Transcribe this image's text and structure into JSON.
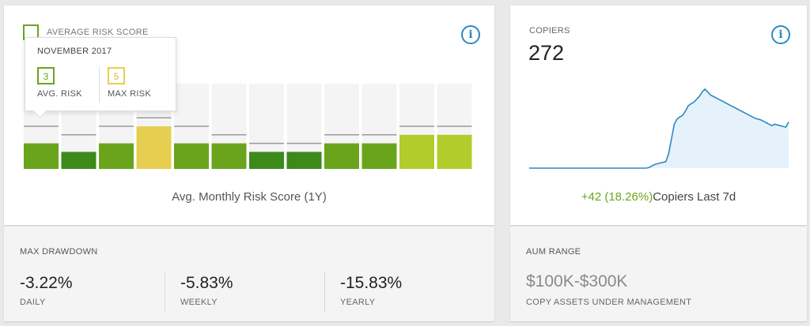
{
  "risk_card": {
    "legend_label": "AVERAGE RISK SCORE",
    "caption": "Avg. Monthly Risk Score (1Y)",
    "tooltip": {
      "title": "NOVEMBER 2017",
      "avg_value": "3",
      "avg_label": "AVG. RISK",
      "max_value": "5",
      "max_label": "MAX RISK"
    }
  },
  "chart_data": {
    "type": "bar",
    "title": "",
    "xlabel": "Avg. Monthly Risk Score (1Y)",
    "ylabel": "",
    "ylim": [
      0,
      10
    ],
    "grid": false,
    "series": [
      {
        "values": [
          3,
          2,
          3,
          5,
          3,
          3,
          2,
          2,
          3,
          3,
          4,
          4
        ]
      }
    ],
    "max_risk": [
      5,
      4,
      5,
      6,
      5,
      4,
      3,
      3,
      4,
      4,
      5,
      5
    ],
    "colors": [
      "#6aa41d",
      "#3c8a1a",
      "#6aa41d",
      "#e6cf50",
      "#6aa41d",
      "#6aa41d",
      "#3c8a1a",
      "#3c8a1a",
      "#6aa41d",
      "#6aa41d",
      "#b1cc2b",
      "#b1cc2b"
    ]
  },
  "copiers_card": {
    "label": "COPIERS",
    "value": "272",
    "delta": "+42 (18.26%)",
    "delta_text": "Copiers Last 7d",
    "spark": [
      0,
      0,
      0,
      0,
      0,
      0,
      0,
      0,
      0,
      0,
      0,
      0,
      0,
      0,
      0,
      0,
      0,
      0,
      0,
      0,
      0,
      0,
      0,
      0,
      0,
      0,
      0,
      0,
      0,
      0,
      0,
      0,
      0,
      0,
      0,
      0,
      0,
      0,
      0,
      0,
      0,
      0,
      0,
      1,
      3,
      5,
      6,
      7,
      8,
      9,
      20,
      40,
      60,
      67,
      70,
      72,
      78,
      85,
      88,
      90,
      94,
      98,
      104,
      108,
      104,
      100,
      98,
      96,
      94,
      92,
      90,
      88,
      86,
      84,
      82,
      80,
      78,
      76,
      74,
      72,
      70,
      68,
      67,
      66,
      64,
      62,
      60,
      58,
      60,
      59,
      58,
      57,
      56,
      63
    ],
    "spark_color": "#2a89c4",
    "spark_fill": "#e6f2fb"
  },
  "drawdown": {
    "heading": "MAX DRAWDOWN",
    "daily_value": "-3.22%",
    "daily_label": "DAILY",
    "weekly_value": "-5.83%",
    "weekly_label": "WEEKLY",
    "yearly_value": "-15.83%",
    "yearly_label": "YEARLY"
  },
  "aum": {
    "heading": "AUM RANGE",
    "value": "$100K-$300K",
    "label": "COPY ASSETS UNDER MANAGEMENT"
  },
  "icons": {
    "info": "i"
  },
  "theme": {
    "accent": "#2a89c4",
    "green": "#6aa41d",
    "dark_green": "#3c8a1a",
    "lime": "#b1cc2b",
    "yellow": "#e6cf50"
  }
}
